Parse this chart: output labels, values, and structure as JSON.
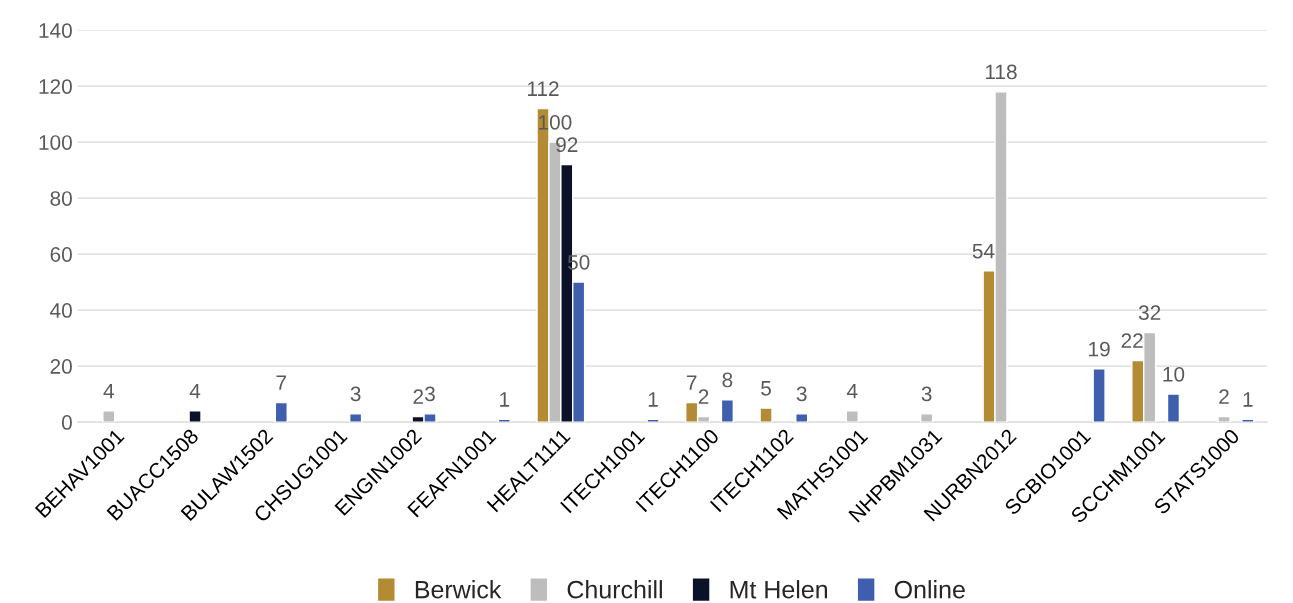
{
  "chart_data": {
    "type": "bar",
    "categories": [
      "BEHAV1001",
      "BUACC1508",
      "BULAW1502",
      "CHSUG1001",
      "ENGIN1002",
      "FEAFN1001",
      "HEALT1111",
      "ITECH1001",
      "ITECH1100",
      "ITECH1102",
      "MATHS1001",
      "NHPBM1031",
      "NURBN2012",
      "SCBIO1001",
      "SCCHM1001",
      "STATS1000"
    ],
    "series": [
      {
        "name": "Berwick",
        "color": "#b38b34",
        "values": [
          null,
          null,
          null,
          null,
          null,
          null,
          112,
          null,
          7,
          5,
          null,
          null,
          54,
          null,
          22,
          null
        ]
      },
      {
        "name": "Churchill",
        "color": "#bdbdbd",
        "values": [
          4,
          null,
          null,
          null,
          null,
          null,
          100,
          null,
          2,
          null,
          4,
          3,
          118,
          null,
          32,
          2
        ]
      },
      {
        "name": "Mt Helen",
        "color": "#0b1128",
        "values": [
          null,
          4,
          null,
          null,
          2,
          null,
          92,
          null,
          null,
          null,
          null,
          null,
          null,
          null,
          null,
          null
        ]
      },
      {
        "name": "Online",
        "color": "#3f5fae",
        "values": [
          null,
          null,
          7,
          3,
          3,
          1,
          50,
          1,
          8,
          3,
          null,
          null,
          null,
          19,
          10,
          1
        ]
      }
    ],
    "ylim": [
      0,
      140
    ],
    "yticks": [
      0,
      20,
      40,
      60,
      80,
      100,
      120,
      140
    ],
    "grid": "y",
    "legend": "bottom",
    "data_labels": true
  }
}
